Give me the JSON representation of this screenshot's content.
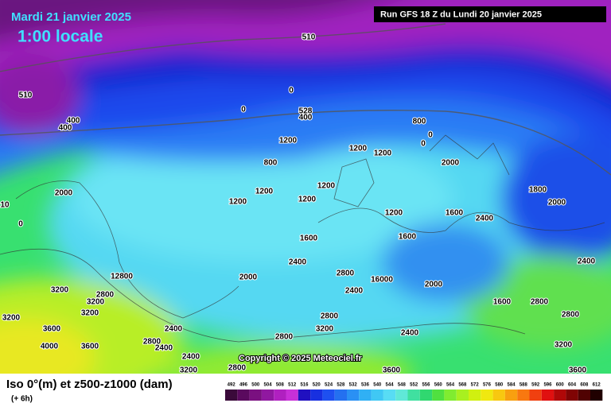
{
  "header": {
    "date": "Mardi 21 janvier 2025",
    "time": "1:00 locale",
    "run": "Run GFS 18 Z du Lundi 20 janvier 2025"
  },
  "map": {
    "copyright": "Copyright © 2025 Meteociel.fr",
    "labels": [
      "510",
      "510",
      "400",
      "400",
      "0",
      "0",
      "528",
      "400",
      "1200",
      "800",
      "1200",
      "1200",
      "1200",
      "1200",
      "1200",
      "1200",
      "800",
      "0",
      "0",
      "2000",
      "10",
      "0",
      "1600",
      "2400",
      "2000",
      "2800",
      "16000",
      "2000",
      "12800",
      "3200",
      "2800",
      "3200",
      "3200",
      "3200",
      "3600",
      "4000",
      "3600",
      "2400",
      "2800",
      "2400",
      "2400",
      "3200",
      "2800",
      "2800",
      "2800",
      "3200",
      "2400",
      "2400",
      "1200",
      "1600",
      "2000",
      "2400",
      "2800",
      "2800",
      "3200",
      "3600",
      "2400",
      "2000",
      "1800",
      "1600",
      "1600",
      "3600"
    ]
  },
  "legend": {
    "title": "Iso 0°(m) et z500-z1000 (dam)",
    "subtitle": "(+ 6h)",
    "steps": [
      492,
      496,
      500,
      504,
      508,
      512,
      516,
      520,
      524,
      528,
      532,
      536,
      540,
      544,
      548,
      552,
      556,
      560,
      564,
      568,
      572,
      576,
      580,
      584,
      588,
      592,
      596,
      600,
      604,
      608,
      612
    ],
    "colors": [
      "#3a0a3a",
      "#5a0a5e",
      "#7a1080",
      "#9018a0",
      "#b020c0",
      "#c830d8",
      "#2010c0",
      "#1830e0",
      "#1e50f0",
      "#2470f0",
      "#2a90f4",
      "#30b0f4",
      "#40c8f4",
      "#58dcf4",
      "#60e8d8",
      "#40e0a0",
      "#30d870",
      "#50e040",
      "#80ec30",
      "#a8f020",
      "#d0f010",
      "#f0e810",
      "#f8c810",
      "#f8a010",
      "#f87810",
      "#f04010",
      "#e01010",
      "#b00808",
      "#800404",
      "#500202",
      "#200000"
    ]
  }
}
